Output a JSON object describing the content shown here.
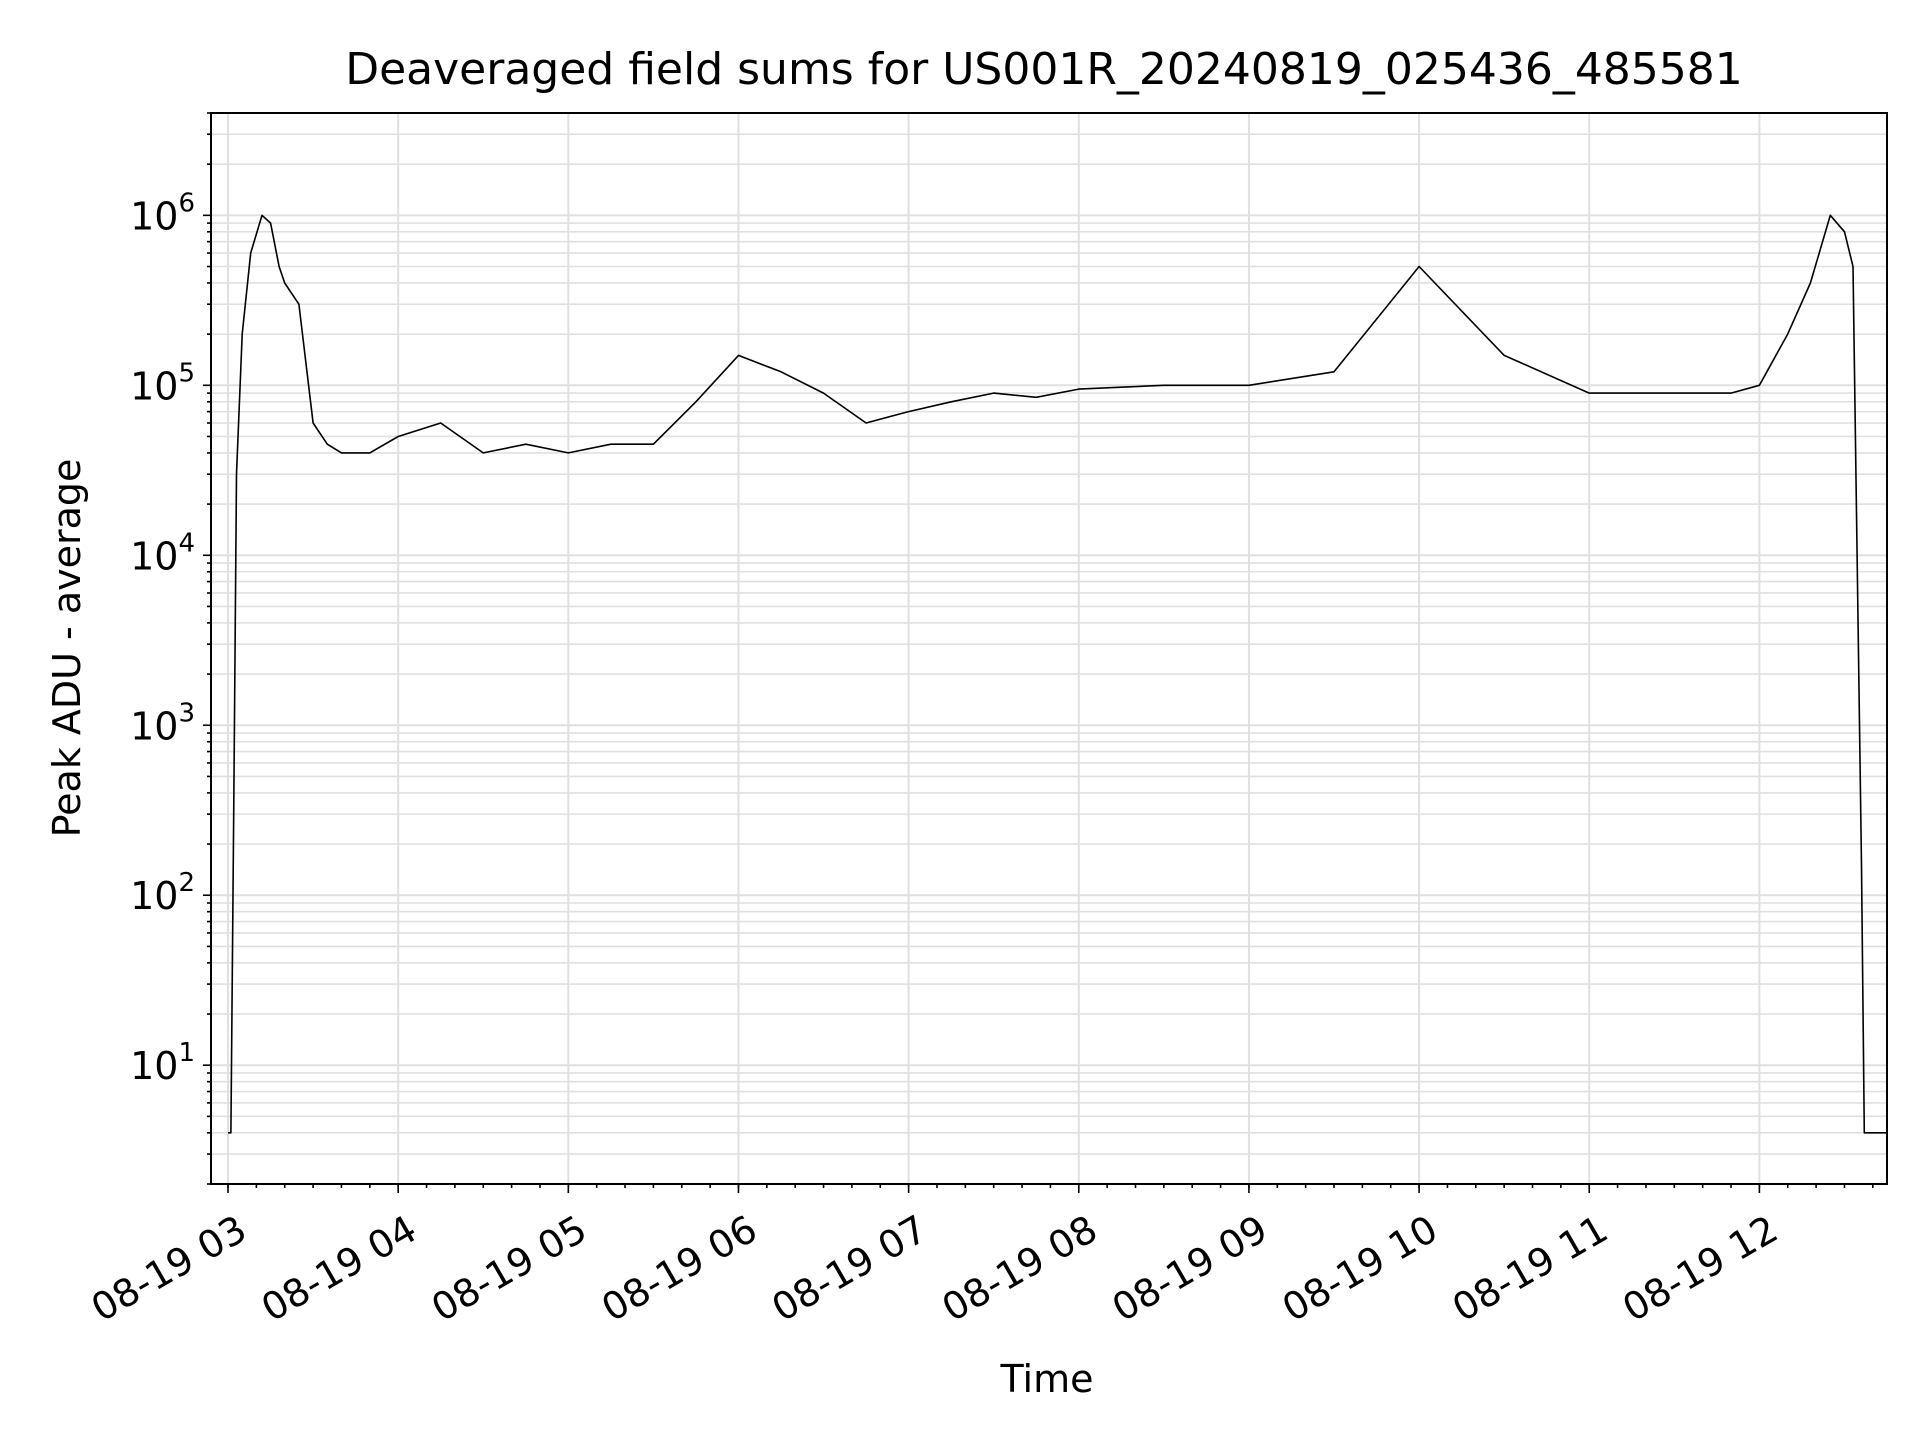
{
  "chart_data": {
    "type": "line",
    "title": "Deaveraged field sums for US001R_20240819_025436_485581",
    "xlabel": "Time",
    "ylabel": "Peak ADU - average",
    "yscale": "log",
    "xlim": [
      "2024-08-19T02:54",
      "2024-08-19T12:45"
    ],
    "ylim": [
      2,
      4000000
    ],
    "grid": true,
    "x_ticks": [
      {
        "value": "2024-08-19T03:00",
        "label": "08-19 03"
      },
      {
        "value": "2024-08-19T04:00",
        "label": "08-19 04"
      },
      {
        "value": "2024-08-19T05:00",
        "label": "08-19 05"
      },
      {
        "value": "2024-08-19T06:00",
        "label": "08-19 06"
      },
      {
        "value": "2024-08-19T07:00",
        "label": "08-19 07"
      },
      {
        "value": "2024-08-19T08:00",
        "label": "08-19 08"
      },
      {
        "value": "2024-08-19T09:00",
        "label": "08-19 09"
      },
      {
        "value": "2024-08-19T10:00",
        "label": "08-19 10"
      },
      {
        "value": "2024-08-19T11:00",
        "label": "08-19 11"
      },
      {
        "value": "2024-08-19T12:00",
        "label": "08-19 12"
      }
    ],
    "y_ticks": [
      {
        "value": 10,
        "base": "10",
        "exp": "1"
      },
      {
        "value": 100,
        "base": "10",
        "exp": "2"
      },
      {
        "value": 1000,
        "base": "10",
        "exp": "3"
      },
      {
        "value": 10000,
        "base": "10",
        "exp": "4"
      },
      {
        "value": 100000,
        "base": "10",
        "exp": "5"
      },
      {
        "value": 1000000,
        "base": "10",
        "exp": "6"
      }
    ],
    "colors": {
      "line": "#000000",
      "grid": "#e0e0e0",
      "axes": "#000000"
    },
    "series": [
      {
        "x": [
          "2024-08-19T03:00",
          "2024-08-19T03:01",
          "2024-08-19T03:02",
          "2024-08-19T03:03",
          "2024-08-19T03:05",
          "2024-08-19T03:08",
          "2024-08-19T03:12",
          "2024-08-19T03:15",
          "2024-08-19T03:18",
          "2024-08-19T03:20",
          "2024-08-19T03:25",
          "2024-08-19T03:30",
          "2024-08-19T03:35",
          "2024-08-19T03:40",
          "2024-08-19T03:50",
          "2024-08-19T04:00",
          "2024-08-19T04:15",
          "2024-08-19T04:30",
          "2024-08-19T04:45",
          "2024-08-19T05:00",
          "2024-08-19T05:15",
          "2024-08-19T05:30",
          "2024-08-19T05:45",
          "2024-08-19T06:00",
          "2024-08-19T06:15",
          "2024-08-19T06:30",
          "2024-08-19T06:45",
          "2024-08-19T07:00",
          "2024-08-19T07:15",
          "2024-08-19T07:30",
          "2024-08-19T07:45",
          "2024-08-19T08:00",
          "2024-08-19T08:30",
          "2024-08-19T09:00",
          "2024-08-19T09:30",
          "2024-08-19T10:00",
          "2024-08-19T10:30",
          "2024-08-19T11:00",
          "2024-08-19T11:30",
          "2024-08-19T11:50",
          "2024-08-19T12:00",
          "2024-08-19T12:10",
          "2024-08-19T12:18",
          "2024-08-19T12:25",
          "2024-08-19T12:30",
          "2024-08-19T12:33",
          "2024-08-19T12:36",
          "2024-08-19T12:37",
          "2024-08-19T12:45"
        ],
        "y": [
          4,
          4,
          300,
          30000,
          200000,
          600000,
          1000000,
          900000,
          500000,
          400000,
          300000,
          60000,
          45000,
          40000,
          40000,
          50000,
          60000,
          40000,
          45000,
          40000,
          45000,
          45000,
          80000,
          150000,
          120000,
          90000,
          60000,
          70000,
          80000,
          90000,
          85000,
          95000,
          100000,
          100000,
          120000,
          500000,
          150000,
          90000,
          90000,
          90000,
          100000,
          200000,
          400000,
          1000000,
          800000,
          500000,
          150,
          4,
          4
        ]
      }
    ]
  }
}
